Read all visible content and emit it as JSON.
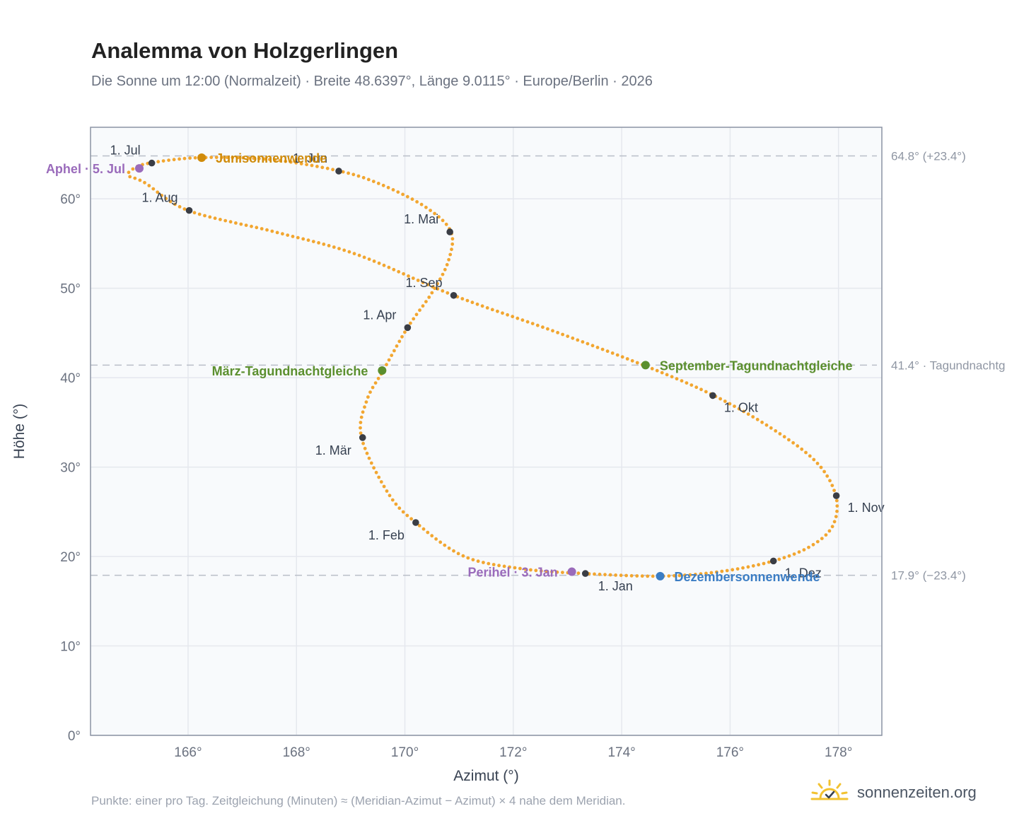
{
  "title": "Analemma von Holzgerlingen",
  "subtitle": "Die Sonne um 12:00 (Normalzeit) · Breite 48.6397°, Länge 9.0115° · Europe/Berlin · 2026",
  "footer_note": "Punkte: einer pro Tag. Zeitgleichung (Minuten) ≈ (Meridian-Azimut − Azimut) × 4 nahe dem Meridian.",
  "brand": {
    "name": "sonnenzeiten.org",
    "icon": "sun-logo-icon"
  },
  "colors": {
    "dots": "#f2a630",
    "month": "#3a3d45",
    "equinox": "#5b8f2e",
    "june": "#d08b0a",
    "december": "#3b7dc4",
    "apsis": "#9a6bbb",
    "refline": "#b9bec8",
    "plot_bg": "#f8fafc",
    "grid": "#e5e8ee",
    "frame": "#8b93a3"
  },
  "chart_data": {
    "type": "scatter",
    "title": "Analemma von Holzgerlingen",
    "xlabel": "Azimut (°)",
    "ylabel": "Höhe (°)",
    "xlim": [
      164.2,
      178.8
    ],
    "ylim": [
      0,
      68
    ],
    "x_ticks": [
      166,
      168,
      170,
      172,
      174,
      176,
      178
    ],
    "x_tick_labels": [
      "166°",
      "168°",
      "170°",
      "172°",
      "174°",
      "176°",
      "178°"
    ],
    "y_ticks": [
      0,
      10,
      20,
      30,
      40,
      50,
      60
    ],
    "y_tick_labels": [
      "0°",
      "10°",
      "20°",
      "30°",
      "40°",
      "50°",
      "60°"
    ],
    "grid": true,
    "curve_control": [
      [
        173.3,
        18.1
      ],
      [
        172.2,
        18.6
      ],
      [
        171.1,
        20.0
      ],
      [
        170.2,
        23.8
      ],
      [
        169.7,
        27.0
      ],
      [
        169.2,
        33.3
      ],
      [
        169.3,
        37.5
      ],
      [
        169.6,
        40.8
      ],
      [
        170.05,
        45.6
      ],
      [
        170.5,
        49.5
      ],
      [
        170.8,
        53.0
      ],
      [
        170.85,
        56.3
      ],
      [
        170.4,
        59.0
      ],
      [
        169.6,
        61.5
      ],
      [
        168.8,
        63.1
      ],
      [
        167.5,
        64.4
      ],
      [
        166.2,
        64.6
      ],
      [
        165.3,
        64.0
      ],
      [
        165.0,
        63.4
      ],
      [
        164.9,
        62.6
      ],
      [
        165.2,
        61.8
      ],
      [
        166.0,
        58.7
      ],
      [
        167.6,
        56.3
      ],
      [
        169.1,
        53.8
      ],
      [
        170.9,
        49.2
      ],
      [
        172.7,
        45.3
      ],
      [
        174.4,
        41.4
      ],
      [
        175.7,
        38.0
      ],
      [
        176.8,
        34.2
      ],
      [
        177.6,
        30.5
      ],
      [
        177.95,
        26.8
      ],
      [
        177.9,
        23.5
      ],
      [
        177.5,
        21.2
      ],
      [
        176.8,
        19.5
      ],
      [
        175.8,
        18.3
      ],
      [
        174.7,
        17.8
      ],
      [
        173.3,
        18.1
      ]
    ],
    "months": [
      {
        "label": "1. Jan",
        "x": 173.33,
        "y": 18.1,
        "label_pos": "below"
      },
      {
        "label": "1. Feb",
        "x": 170.2,
        "y": 23.8,
        "label_pos": "below-left"
      },
      {
        "label": "1. Mär",
        "x": 169.22,
        "y": 33.3,
        "label_pos": "below-left"
      },
      {
        "label": "1. Apr",
        "x": 170.05,
        "y": 45.6,
        "label_pos": "above-left"
      },
      {
        "label": "1. Mai",
        "x": 170.83,
        "y": 56.3,
        "label_pos": "above-left"
      },
      {
        "label": "1. Jun",
        "x": 168.78,
        "y": 63.1,
        "label_pos": "above-left"
      },
      {
        "label": "1. Jul",
        "x": 165.33,
        "y": 64.0,
        "label_pos": "above-left"
      },
      {
        "label": "1. Aug",
        "x": 166.02,
        "y": 58.7,
        "label_pos": "above-left"
      },
      {
        "label": "1. Sep",
        "x": 170.9,
        "y": 49.2,
        "label_pos": "above-left"
      },
      {
        "label": "1. Okt",
        "x": 175.68,
        "y": 38.0,
        "label_pos": "below-right"
      },
      {
        "label": "1. Nov",
        "x": 177.96,
        "y": 26.8,
        "label_pos": "below-right"
      },
      {
        "label": "1. Dez",
        "x": 176.8,
        "y": 19.5,
        "label_pos": "below-right"
      }
    ],
    "events": [
      {
        "label": "Junisonnenwende",
        "x": 166.25,
        "y": 64.6,
        "color": "#d08b0a",
        "label_pos": "right"
      },
      {
        "label": "Dezembersonnenwende",
        "x": 174.71,
        "y": 17.8,
        "color": "#3b7dc4",
        "label_pos": "right"
      },
      {
        "label": "März-Tagundnachtgleiche",
        "x": 169.58,
        "y": 40.8,
        "color": "#5b8f2e",
        "label_pos": "left"
      },
      {
        "label": "September-Tagundnachtgleiche",
        "x": 174.44,
        "y": 41.4,
        "color": "#5b8f2e",
        "label_pos": "right"
      },
      {
        "label": "Aphel · 5. Jul",
        "x": 165.1,
        "y": 63.4,
        "color": "#9a6bbb",
        "label_pos": "left"
      },
      {
        "label": "Perihel · 3. Jan",
        "x": 173.08,
        "y": 18.3,
        "color": "#9a6bbb",
        "label_pos": "left"
      }
    ],
    "reference_lines": [
      {
        "y": 64.8,
        "label": "64.8° (+23.4°)"
      },
      {
        "y": 41.4,
        "label": "41.4° · Tagundnachtg"
      },
      {
        "y": 17.9,
        "label": "17.9° (−23.4°)"
      }
    ]
  }
}
